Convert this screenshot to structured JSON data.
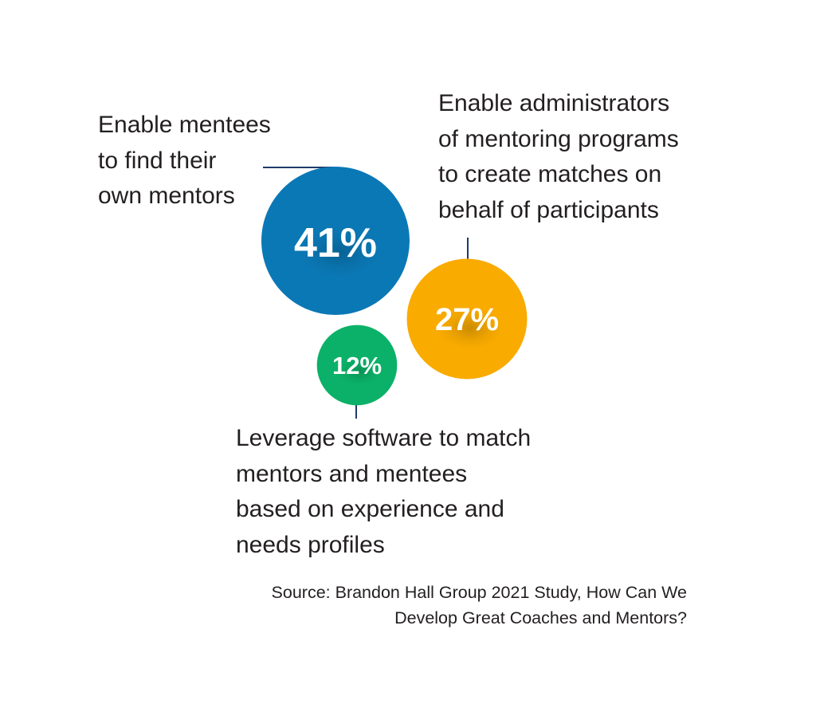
{
  "chart_data": {
    "type": "bubble",
    "title": "",
    "colors": {
      "line": "#1f3a6b",
      "text": "#231f20"
    },
    "items": [
      {
        "label": "Enable mentees\nto find their\nown mentors",
        "value": 41,
        "value_label": "41%",
        "color": "#0a78b5"
      },
      {
        "label": "Enable administrators\nof mentoring programs\nto create matches on\nbehalf of participants",
        "value": 27,
        "value_label": "27%",
        "color": "#f9ab00"
      },
      {
        "label": "Leverage software to match\nmentors and mentees\nbased on experience and\nneeds profiles",
        "value": 12,
        "value_label": "12%",
        "color": "#0bb168"
      }
    ],
    "source": "Source: Brandon Hall Group 2021 Study, How Can We\nDevelop Great Coaches and Mentors?"
  }
}
